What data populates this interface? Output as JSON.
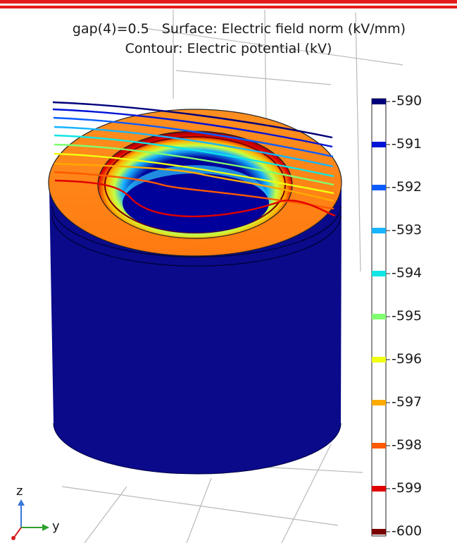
{
  "title": {
    "line1": "gap(4)=0.5   Surface: Electric field norm (kV/mm)",
    "line2": "Contour: Electric potential (kV)"
  },
  "legend": {
    "labels": [
      "-590",
      "-591",
      "-592",
      "-593",
      "-594",
      "-595",
      "-596",
      "-597",
      "-598",
      "-599",
      "-600"
    ],
    "colors": [
      "#00007a",
      "#0014d6",
      "#0a5cff",
      "#18b4ff",
      "#10e6e6",
      "#80ff70",
      "#f0ff10",
      "#ffaa00",
      "#ff5a00",
      "#e00000",
      "#7a0000"
    ]
  },
  "axes": {
    "z_label": "z",
    "y_label": "y",
    "z_color": "#3a76d6",
    "y_color": "#2ea12e",
    "x_color": "#d62020"
  },
  "colors": {
    "top_bar": "#e31b1b",
    "cylinder_side": "#0a0a8a",
    "cylinder_top": "#ff8a1e",
    "grid": "#b9b9b9"
  }
}
